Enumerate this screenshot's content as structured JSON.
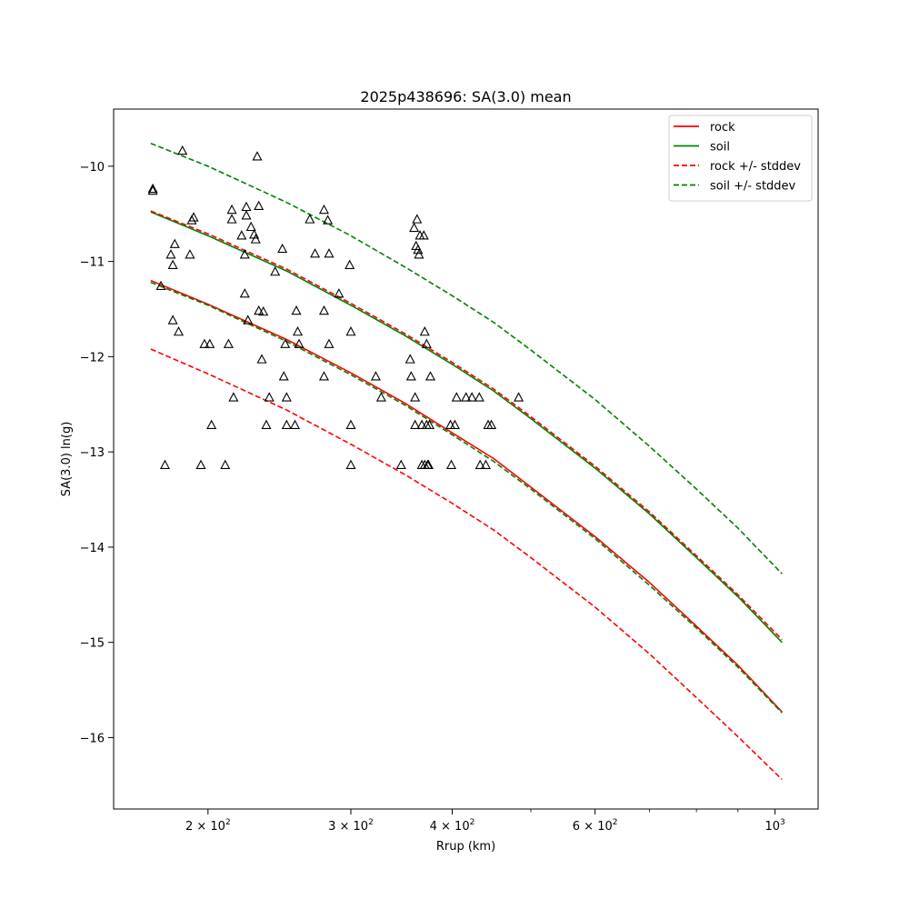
{
  "chart_data": {
    "type": "line",
    "title": "2025p438696: SA(3.0) mean",
    "xlabel": "Rrup (km)",
    "ylabel": "SA(3.0) ln(g)",
    "x_scale": "log",
    "xlim": [
      153,
      1130
    ],
    "ylim": [
      -16.75,
      -9.4
    ],
    "x_ticks": [
      {
        "value": 200,
        "label": "2 × 10",
        "exp": "2"
      },
      {
        "value": 300,
        "label": "3 × 10",
        "exp": "2"
      },
      {
        "value": 400,
        "label": "4 × 10",
        "exp": "2"
      },
      {
        "value": 600,
        "label": "6 × 10",
        "exp": "2"
      },
      {
        "value": 1000,
        "label": "10",
        "exp": "3"
      }
    ],
    "x_minor_ticks": [
      500,
      700,
      800,
      900
    ],
    "y_ticks": [
      {
        "value": -10,
        "label": "−10"
      },
      {
        "value": -11,
        "label": "−11"
      },
      {
        "value": -12,
        "label": "−12"
      },
      {
        "value": -13,
        "label": "−13"
      },
      {
        "value": -14,
        "label": "−14"
      },
      {
        "value": -15,
        "label": "−15"
      },
      {
        "value": -16,
        "label": "−16"
      }
    ],
    "grid": false,
    "legend_position": "top-right",
    "x": [
      170,
      200,
      250,
      300,
      350,
      400,
      450,
      500,
      600,
      700,
      800,
      900,
      1020
    ],
    "series": [
      {
        "name": "rock",
        "color": "#ff0000",
        "dash": false,
        "values": [
          -11.2,
          -11.45,
          -11.82,
          -12.17,
          -12.49,
          -12.8,
          -13.07,
          -13.37,
          -13.89,
          -14.37,
          -14.83,
          -15.24,
          -15.73
        ]
      },
      {
        "name": "soil",
        "color": "#008000",
        "dash": false,
        "values": [
          -10.48,
          -10.73,
          -11.1,
          -11.46,
          -11.78,
          -12.08,
          -12.36,
          -12.65,
          -13.17,
          -13.65,
          -14.11,
          -14.52,
          -15.0
        ]
      },
      {
        "name": "rock +/- stddev",
        "color": "#ff0000",
        "dash": true,
        "values": [
          -10.47,
          -10.71,
          -11.08,
          -11.44,
          -11.76,
          -12.06,
          -12.34,
          -12.63,
          -13.15,
          -13.63,
          -14.09,
          -14.5,
          -14.97
        ]
      },
      {
        "name": "",
        "color": "#ff0000",
        "dash": true,
        "values": [
          -11.92,
          -12.18,
          -12.56,
          -12.92,
          -13.24,
          -13.54,
          -13.82,
          -14.11,
          -14.63,
          -15.12,
          -15.58,
          -15.99,
          -16.44
        ]
      },
      {
        "name": "soil +/- stddev",
        "color": "#008000",
        "dash": true,
        "values": [
          -9.76,
          -10.0,
          -10.38,
          -10.73,
          -11.06,
          -11.36,
          -11.64,
          -11.93,
          -12.45,
          -12.94,
          -13.39,
          -13.8,
          -14.28
        ]
      },
      {
        "name": "",
        "color": "#008000",
        "dash": true,
        "values": [
          -11.22,
          -11.46,
          -11.84,
          -12.19,
          -12.51,
          -12.82,
          -13.1,
          -13.39,
          -13.91,
          -14.4,
          -14.85,
          -15.26,
          -15.74
        ]
      }
    ],
    "observations": {
      "marker": "triangle",
      "color": "#000000",
      "points": [
        [
          171,
          -10.24
        ],
        [
          171,
          -10.26
        ],
        [
          175,
          -11.26
        ],
        [
          177,
          -13.14
        ],
        [
          180,
          -10.93
        ],
        [
          181,
          -11.04
        ],
        [
          181,
          -11.62
        ],
        [
          182,
          -10.82
        ],
        [
          184,
          -11.74
        ],
        [
          186,
          -9.84
        ],
        [
          190,
          -10.93
        ],
        [
          191,
          -10.57
        ],
        [
          192,
          -10.54
        ],
        [
          196,
          -13.14
        ],
        [
          198,
          -11.87
        ],
        [
          201,
          -11.87
        ],
        [
          202,
          -12.72
        ],
        [
          210,
          -13.14
        ],
        [
          212,
          -11.87
        ],
        [
          214,
          -10.46
        ],
        [
          214,
          -10.56
        ],
        [
          215,
          -12.43
        ],
        [
          220,
          -10.73
        ],
        [
          222,
          -11.34
        ],
        [
          222,
          -10.93
        ],
        [
          223,
          -10.52
        ],
        [
          223,
          -10.43
        ],
        [
          224,
          -11.62
        ],
        [
          226,
          -10.64
        ],
        [
          228,
          -10.72
        ],
        [
          229,
          -10.77
        ],
        [
          230,
          -9.9
        ],
        [
          231,
          -10.42
        ],
        [
          231,
          -11.52
        ],
        [
          233,
          -12.03
        ],
        [
          234,
          -11.53
        ],
        [
          236,
          -12.72
        ],
        [
          238,
          -12.43
        ],
        [
          242,
          -11.11
        ],
        [
          247,
          -10.87
        ],
        [
          248,
          -12.21
        ],
        [
          249,
          -11.87
        ],
        [
          250,
          -12.43
        ],
        [
          250,
          -12.72
        ],
        [
          256,
          -12.72
        ],
        [
          257,
          -11.52
        ],
        [
          258,
          -11.74
        ],
        [
          259,
          -11.87
        ],
        [
          267,
          -10.56
        ],
        [
          271,
          -10.92
        ],
        [
          278,
          -10.46
        ],
        [
          278,
          -11.52
        ],
        [
          278,
          -12.21
        ],
        [
          281,
          -10.57
        ],
        [
          282,
          -11.87
        ],
        [
          282,
          -10.92
        ],
        [
          290,
          -11.34
        ],
        [
          299,
          -11.04
        ],
        [
          300,
          -11.74
        ],
        [
          300,
          -12.72
        ],
        [
          300,
          -13.14
        ],
        [
          322,
          -12.21
        ],
        [
          327,
          -12.43
        ],
        [
          346,
          -13.14
        ],
        [
          355,
          -12.03
        ],
        [
          356,
          -12.21
        ],
        [
          359,
          -10.65
        ],
        [
          360,
          -12.43
        ],
        [
          360,
          -12.72
        ],
        [
          361,
          -10.84
        ],
        [
          362,
          -10.56
        ],
        [
          363,
          -10.88
        ],
        [
          364,
          -10.93
        ],
        [
          365,
          -10.73
        ],
        [
          367,
          -12.72
        ],
        [
          367,
          -13.14
        ],
        [
          369,
          -10.73
        ],
        [
          370,
          -11.74
        ],
        [
          370,
          -13.14
        ],
        [
          372,
          -11.87
        ],
        [
          372,
          -12.72
        ],
        [
          373,
          -13.14
        ],
        [
          374,
          -13.14
        ],
        [
          375,
          -12.72
        ],
        [
          376,
          -12.21
        ],
        [
          398,
          -12.72
        ],
        [
          399,
          -13.14
        ],
        [
          403,
          -12.72
        ],
        [
          405,
          -12.43
        ],
        [
          416,
          -12.43
        ],
        [
          423,
          -12.43
        ],
        [
          432,
          -12.43
        ],
        [
          433,
          -13.14
        ],
        [
          440,
          -13.14
        ],
        [
          443,
          -12.72
        ],
        [
          447,
          -12.72
        ],
        [
          483,
          -12.43
        ]
      ]
    }
  }
}
